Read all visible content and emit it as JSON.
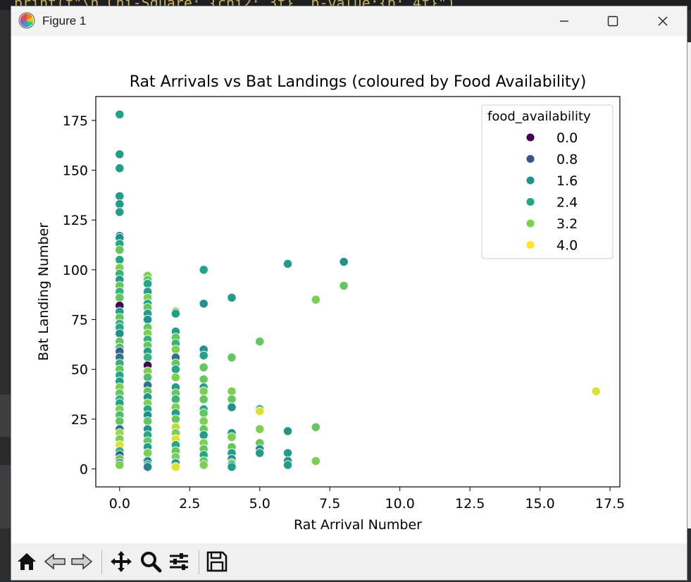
{
  "window": {
    "title": "Figure 1"
  },
  "background": {
    "code_fragment": "print(f\"\\n Chi-Square: {chi2:.3f}, p-value:{p:.4f}\")"
  },
  "toolbar": {
    "buttons": [
      "home",
      "back",
      "forward",
      "pan",
      "zoom",
      "configure-subplots",
      "save"
    ]
  },
  "chart_data": {
    "type": "scatter",
    "title": "Rat Arrivals vs Bat Landings (coloured by Food Availability)",
    "xlabel": "Rat Arrival Number",
    "ylabel": "Bat Landing Number",
    "xlim": [
      -0.85,
      17.85
    ],
    "ylim": [
      -9,
      187
    ],
    "xticks": [
      0,
      2.5,
      5,
      7.5,
      10,
      12.5,
      15,
      17.5
    ],
    "xtick_labels": [
      "0.0",
      "2.5",
      "5.0",
      "7.5",
      "10.0",
      "12.5",
      "15.0",
      "17.5"
    ],
    "yticks": [
      0,
      25,
      50,
      75,
      100,
      125,
      150,
      175
    ],
    "ytick_labels": [
      "0",
      "25",
      "50",
      "75",
      "100",
      "125",
      "150",
      "175"
    ],
    "legend": {
      "title": "food_availability",
      "position": "upper right",
      "entries": [
        {
          "label": "0.0",
          "color": "#440154"
        },
        {
          "label": "0.8",
          "color": "#3b528b"
        },
        {
          "label": "1.6",
          "color": "#21918c"
        },
        {
          "label": "2.4",
          "color": "#22a884"
        },
        {
          "label": "3.2",
          "color": "#7ad151"
        },
        {
          "label": "4.0",
          "color": "#fde725"
        }
      ]
    },
    "colormap": "viridis",
    "hue_range": [
      0,
      4
    ],
    "points": [
      [
        0,
        178,
        2.2
      ],
      [
        0,
        158,
        2.0
      ],
      [
        0,
        151,
        2.0
      ],
      [
        0,
        137,
        2.0
      ],
      [
        0,
        133,
        2.0
      ],
      [
        0,
        129,
        2.0
      ],
      [
        0,
        117,
        1.4
      ],
      [
        0,
        116,
        1.6
      ],
      [
        0,
        113,
        2.4
      ],
      [
        0,
        110,
        3.0
      ],
      [
        0,
        105,
        2.4
      ],
      [
        0,
        101,
        3.2
      ],
      [
        0,
        98,
        2.6
      ],
      [
        0,
        95,
        2.0
      ],
      [
        0,
        92,
        3.0
      ],
      [
        0,
        89,
        2.6
      ],
      [
        0,
        86,
        3.0
      ],
      [
        0,
        82,
        0.0
      ],
      [
        0,
        79,
        2.0
      ],
      [
        0,
        76,
        3.0
      ],
      [
        0,
        73,
        2.6
      ],
      [
        0,
        71,
        2.4
      ],
      [
        0,
        68,
        1.6
      ],
      [
        0,
        64,
        3.0
      ],
      [
        0,
        61,
        2.8
      ],
      [
        0,
        59,
        1.0
      ],
      [
        0,
        56,
        1.2
      ],
      [
        0,
        53,
        2.6
      ],
      [
        0,
        50,
        3.0
      ],
      [
        0,
        47,
        2.4
      ],
      [
        0,
        44,
        2.0
      ],
      [
        0,
        41,
        3.2
      ],
      [
        0,
        38,
        3.0
      ],
      [
        0,
        35,
        2.6
      ],
      [
        0,
        33,
        2.2
      ],
      [
        0,
        30,
        3.2
      ],
      [
        0,
        27,
        2.8
      ],
      [
        0,
        24,
        3.0
      ],
      [
        0,
        20,
        1.2
      ],
      [
        0,
        18,
        3.4
      ],
      [
        0,
        15,
        3.2
      ],
      [
        0,
        12,
        3.8
      ],
      [
        0,
        9,
        2.6
      ],
      [
        0,
        7,
        1.0
      ],
      [
        0,
        5,
        3.0
      ],
      [
        0,
        3,
        1.2
      ],
      [
        0,
        2,
        3.2
      ],
      [
        1,
        97,
        3.2
      ],
      [
        1,
        95,
        3.0
      ],
      [
        1,
        93,
        2.4
      ],
      [
        1,
        89,
        2.0
      ],
      [
        1,
        86,
        3.2
      ],
      [
        1,
        83,
        2.4
      ],
      [
        1,
        81,
        3.0
      ],
      [
        1,
        78,
        2.0
      ],
      [
        1,
        75,
        1.6
      ],
      [
        1,
        71,
        3.0
      ],
      [
        1,
        68,
        3.2
      ],
      [
        1,
        65,
        2.6
      ],
      [
        1,
        62,
        3.0
      ],
      [
        1,
        59,
        2.0
      ],
      [
        1,
        56,
        2.6
      ],
      [
        1,
        52,
        0.0
      ],
      [
        1,
        49,
        3.2
      ],
      [
        1,
        46,
        2.8
      ],
      [
        1,
        42,
        1.2
      ],
      [
        1,
        39,
        3.0
      ],
      [
        1,
        36,
        1.6
      ],
      [
        1,
        33,
        3.2
      ],
      [
        1,
        30,
        2.4
      ],
      [
        1,
        27,
        1.6
      ],
      [
        1,
        24,
        3.0
      ],
      [
        1,
        20,
        1.6
      ],
      [
        1,
        17,
        2.4
      ],
      [
        1,
        14,
        3.0
      ],
      [
        1,
        11,
        2.0
      ],
      [
        1,
        8,
        3.2
      ],
      [
        1,
        4,
        1.6
      ],
      [
        1,
        2,
        2.0
      ],
      [
        1,
        1,
        1.4
      ],
      [
        2,
        79,
        3.2
      ],
      [
        2,
        78,
        2.0
      ],
      [
        2,
        69,
        2.0
      ],
      [
        2,
        66,
        3.0
      ],
      [
        2,
        63,
        2.6
      ],
      [
        2,
        60,
        3.2
      ],
      [
        2,
        56,
        1.2
      ],
      [
        2,
        53,
        3.0
      ],
      [
        2,
        50,
        2.4
      ],
      [
        2,
        46,
        3.2
      ],
      [
        2,
        41,
        2.0
      ],
      [
        2,
        38,
        3.0
      ],
      [
        2,
        35,
        2.6
      ],
      [
        2,
        31,
        3.2
      ],
      [
        2,
        28,
        2.0
      ],
      [
        2,
        25,
        3.0
      ],
      [
        2,
        21,
        3.6
      ],
      [
        2,
        18,
        3.2
      ],
      [
        2,
        15,
        3.8
      ],
      [
        2,
        12,
        2.4
      ],
      [
        2,
        9,
        3.0
      ],
      [
        2,
        6,
        3.2
      ],
      [
        2,
        3,
        2.0
      ],
      [
        2,
        1,
        3.8
      ],
      [
        3,
        100,
        2.2
      ],
      [
        3,
        83,
        1.6
      ],
      [
        3,
        60,
        1.6
      ],
      [
        3,
        57,
        2.2
      ],
      [
        3,
        51,
        3.0
      ],
      [
        3,
        45,
        3.0
      ],
      [
        3,
        41,
        2.0
      ],
      [
        3,
        39,
        3.2
      ],
      [
        3,
        35,
        3.0
      ],
      [
        3,
        30,
        2.4
      ],
      [
        3,
        28,
        3.0
      ],
      [
        3,
        24,
        3.2
      ],
      [
        3,
        20,
        3.0
      ],
      [
        3,
        17,
        2.0
      ],
      [
        3,
        13,
        3.2
      ],
      [
        3,
        10,
        3.0
      ],
      [
        3,
        7,
        2.4
      ],
      [
        3,
        4,
        3.0
      ],
      [
        3,
        2,
        3.2
      ],
      [
        4,
        86,
        2.0
      ],
      [
        4,
        56,
        3.0
      ],
      [
        4,
        39,
        3.2
      ],
      [
        4,
        35,
        3.0
      ],
      [
        4,
        31,
        1.6
      ],
      [
        4,
        18,
        1.6
      ],
      [
        4,
        16,
        3.2
      ],
      [
        4,
        11,
        3.0
      ],
      [
        4,
        8,
        2.0
      ],
      [
        4,
        5,
        1.6
      ],
      [
        4,
        3,
        3.2
      ],
      [
        4,
        2,
        1.6
      ],
      [
        4,
        1,
        2.0
      ],
      [
        5,
        64,
        3.0
      ],
      [
        5,
        30,
        2.0
      ],
      [
        5,
        29,
        3.8
      ],
      [
        5,
        20,
        3.2
      ],
      [
        5,
        13,
        3.0
      ],
      [
        5,
        10,
        1.6
      ],
      [
        5,
        8,
        2.0
      ],
      [
        6,
        103,
        2.0
      ],
      [
        6,
        19,
        1.8
      ],
      [
        6,
        8,
        2.0
      ],
      [
        6,
        4,
        1.6
      ],
      [
        6,
        2,
        2.0
      ],
      [
        7,
        85,
        3.2
      ],
      [
        7,
        21,
        3.0
      ],
      [
        7,
        4,
        3.2
      ],
      [
        8,
        104,
        1.6
      ],
      [
        8,
        92,
        3.0
      ],
      [
        17,
        39,
        3.8
      ]
    ]
  }
}
